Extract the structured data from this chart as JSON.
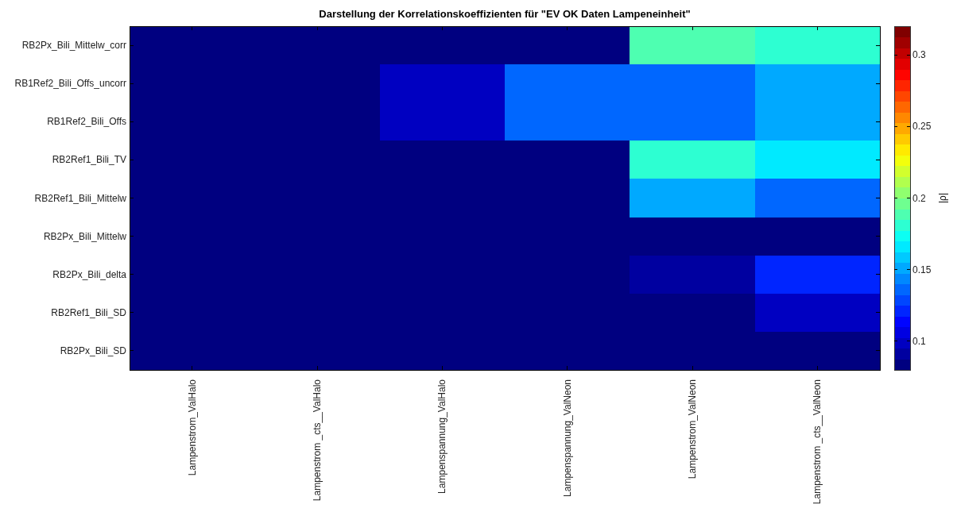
{
  "chart_data": {
    "type": "heatmap",
    "title": "Darstellung der Korrelationskoeffizienten für \"EV OK Daten Lampeneinheit\"",
    "clabel": "|ρ|",
    "categories": [
      "Lampenstrom_ValHalo",
      "Lampenstrom _cts__ValHalo",
      "Lampenspannung_ValHalo",
      "Lampenspannung_ValNeon",
      "Lampenstrom_ValNeon",
      "Lampenstrom _cts__ValNeon"
    ],
    "y_categories": [
      "RB2Px_Bili_Mittelw_corr",
      "RB1Ref2_Bili_Offs_uncorr",
      "RB1Ref2_Bili_Offs",
      "RB2Ref1_Bili_TV",
      "RB2Ref1_Bili_Mittelw",
      "RB2Px_Bili_Mittelw",
      "RB2Px_Bili_delta",
      "RB2Ref1_Bili_SD",
      "RB2Px_Bili_SD"
    ],
    "cells": [
      [
        0.085,
        0.085,
        0.085,
        0.085,
        0.188,
        0.181
      ],
      [
        0.085,
        0.085,
        0.101,
        0.138,
        0.138,
        0.153
      ],
      [
        0.085,
        0.085,
        0.101,
        0.138,
        0.138,
        0.153
      ],
      [
        0.085,
        0.085,
        0.085,
        0.085,
        0.181,
        0.165
      ],
      [
        0.085,
        0.085,
        0.085,
        0.085,
        0.153,
        0.138
      ],
      [
        0.085,
        0.085,
        0.085,
        0.085,
        0.085,
        0.085
      ],
      [
        0.085,
        0.085,
        0.085,
        0.085,
        0.09,
        0.119
      ],
      [
        0.085,
        0.085,
        0.085,
        0.085,
        0.085,
        0.101
      ],
      [
        0.085,
        0.085,
        0.085,
        0.085,
        0.085,
        0.085
      ]
    ],
    "clim": [
      0.08,
      0.32
    ],
    "cticks": [
      0.1,
      0.15,
      0.2,
      0.25,
      0.3
    ]
  }
}
